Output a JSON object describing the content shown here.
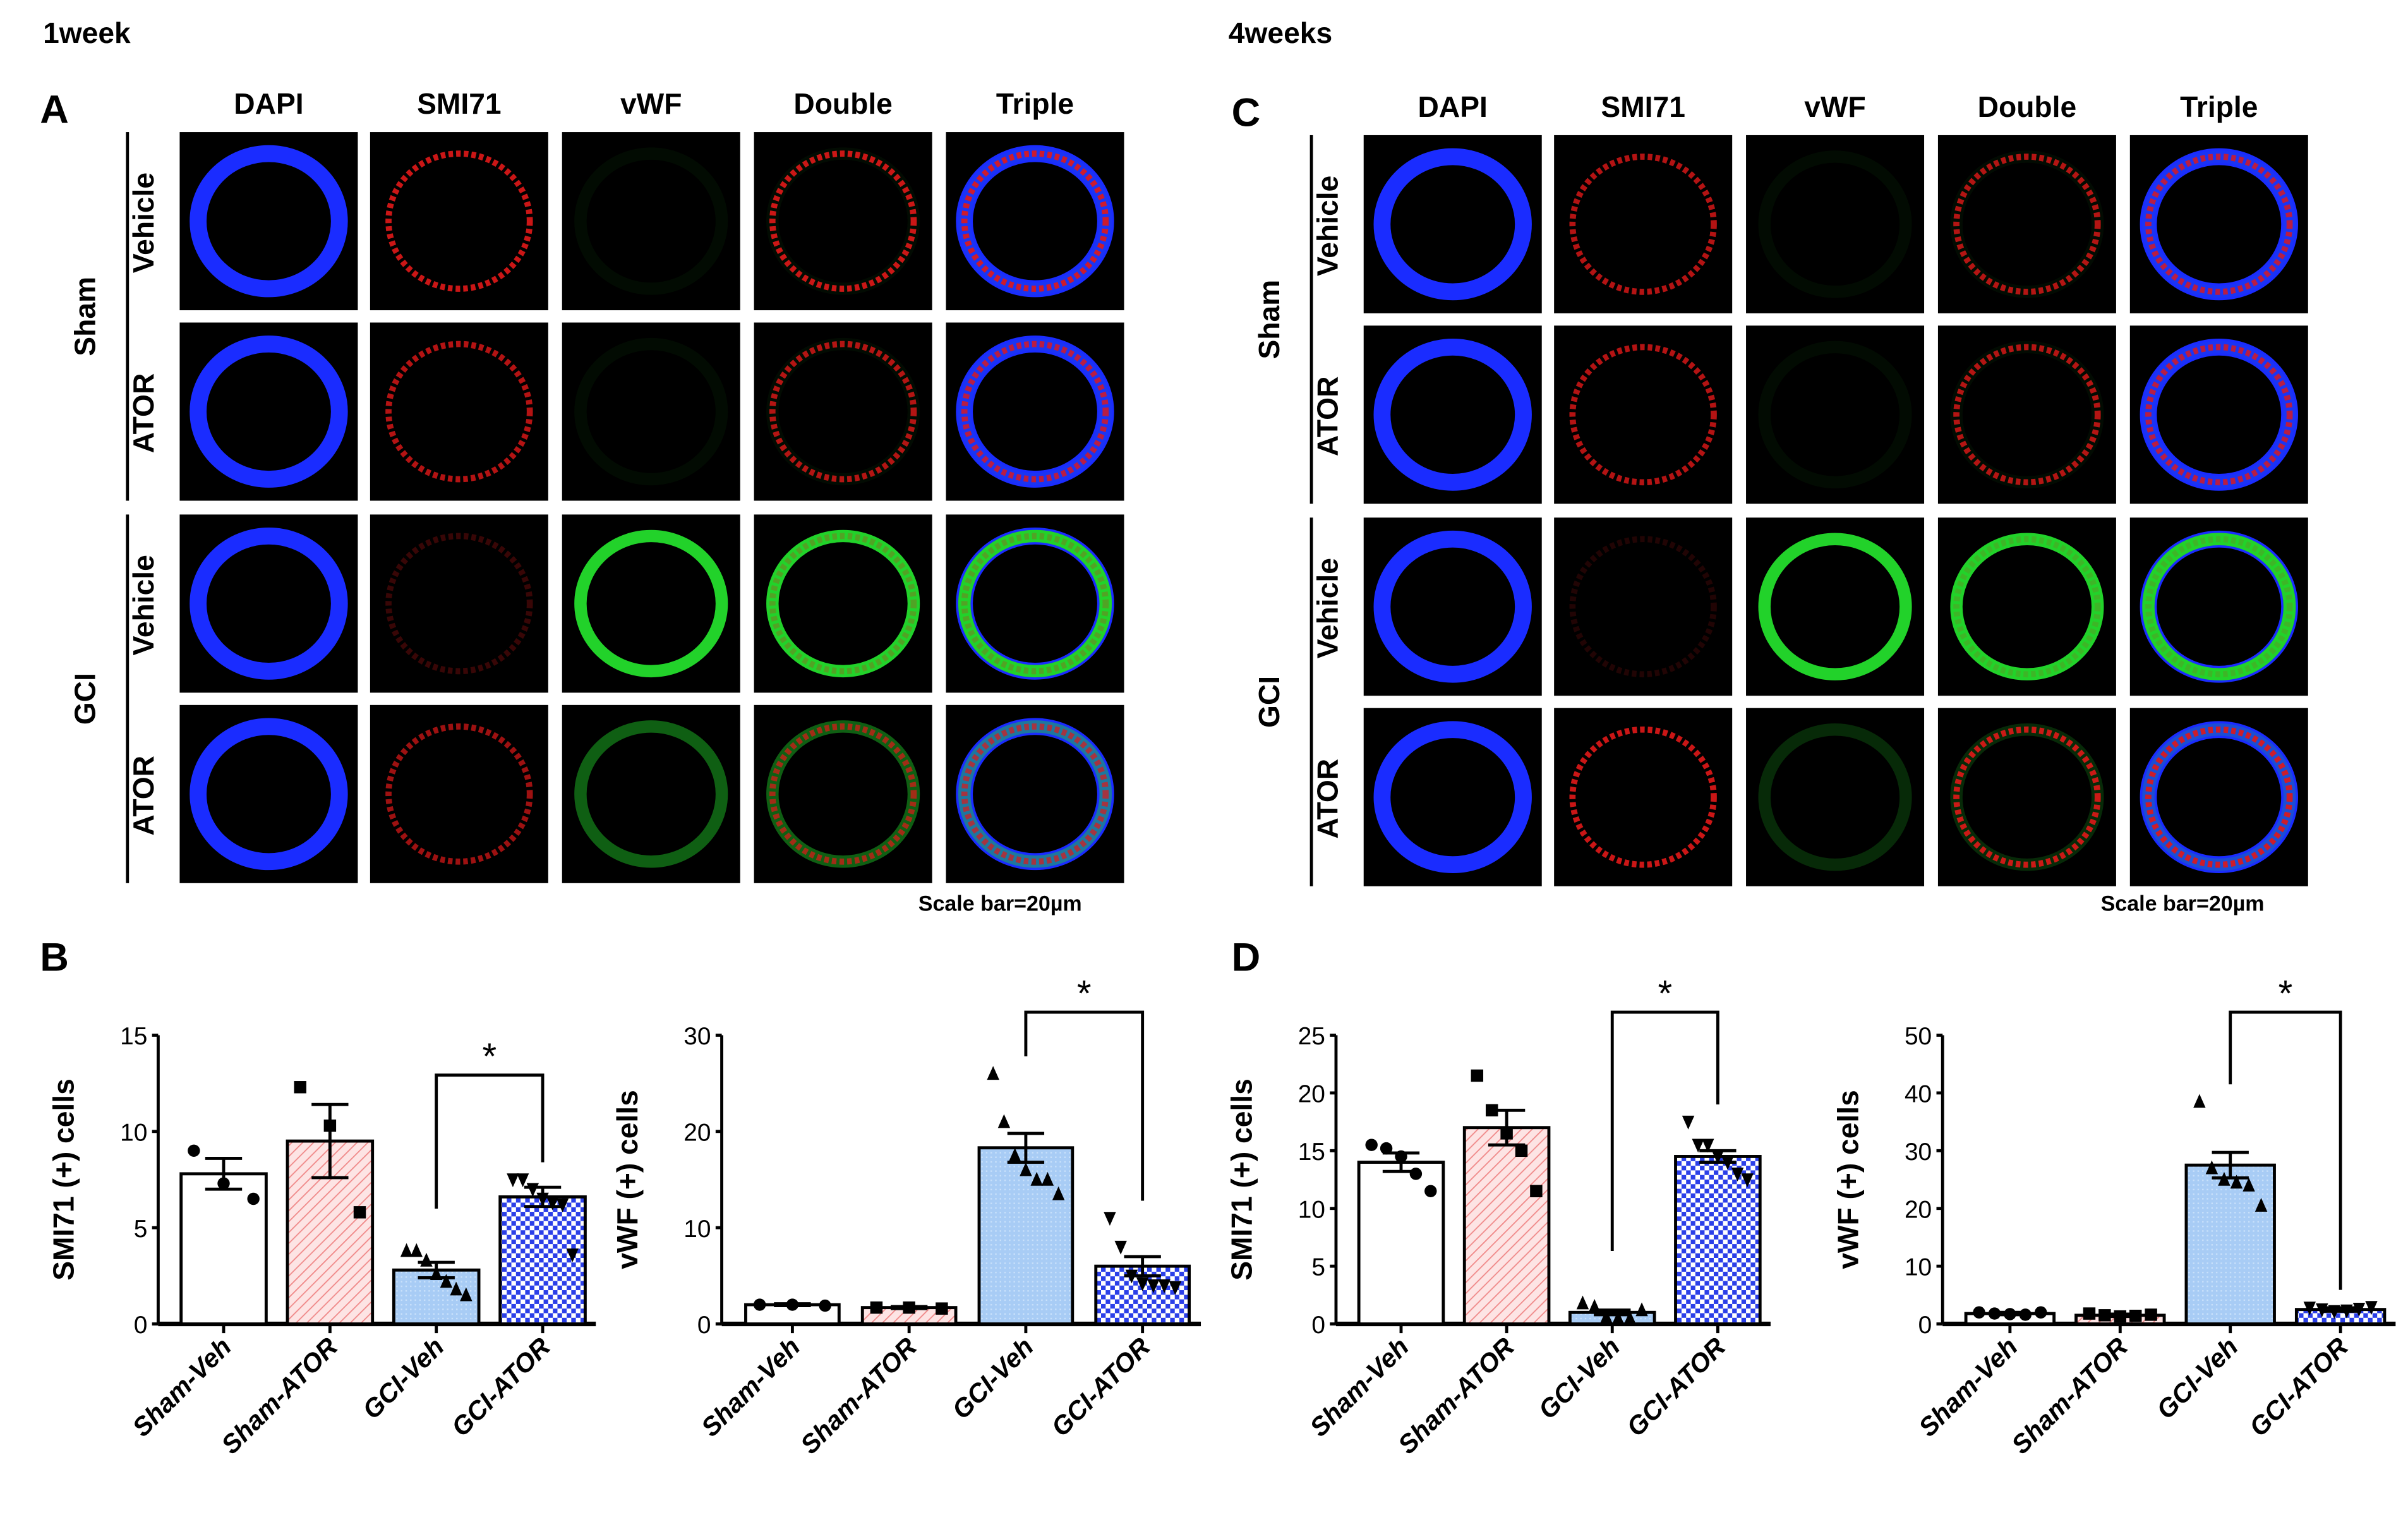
{
  "figure": {
    "week1_title": "1week",
    "week4_title": "4weeks",
    "panel_labels": {
      "A": "A",
      "B": "B",
      "C": "C",
      "D": "D"
    },
    "columns": [
      "DAPI",
      "SMI71",
      "vWF",
      "Double",
      "Triple"
    ],
    "group_labels": [
      "Sham",
      "GCI"
    ],
    "row_labels": [
      "Vehicle",
      "ATOR",
      "Vehicle",
      "ATOR"
    ],
    "scale_bar": "Scale bar=20µm",
    "channel_colors": {
      "DAPI": "#1a2cff",
      "SMI71": "#e01818",
      "vWF": "#22d22a"
    }
  },
  "chart_data": [
    {
      "type": "bar",
      "panel": "B",
      "ylabel": "SMI71 (+) cells",
      "ylim": [
        0,
        15
      ],
      "yticks": [
        0,
        5,
        10,
        15
      ],
      "categories": [
        "Sham-Veh",
        "Sham-ATOR",
        "GCI-Veh",
        "GCI-ATOR"
      ],
      "values": [
        7.8,
        9.5,
        2.8,
        6.6
      ],
      "sem": [
        0.8,
        1.9,
        0.4,
        0.5
      ],
      "points": [
        [
          9.0,
          7.3,
          6.5
        ],
        [
          12.3,
          10.3,
          5.8
        ],
        [
          3.8,
          3.8,
          3.3,
          2.6,
          2.2,
          1.8,
          1.5
        ],
        [
          7.5,
          7.5,
          7.0,
          6.5,
          6.3,
          6.2,
          3.6
        ]
      ],
      "significance": {
        "between": [
          "GCI-Veh",
          "GCI-ATOR"
        ],
        "label": "*"
      }
    },
    {
      "type": "bar",
      "panel": "B",
      "ylabel": "vWF (+) cells",
      "ylim": [
        0,
        30
      ],
      "yticks": [
        0,
        10,
        20,
        30
      ],
      "categories": [
        "Sham-Veh",
        "Sham-ATOR",
        "GCI-Veh",
        "GCI-ATOR"
      ],
      "values": [
        2.0,
        1.7,
        18.3,
        6.0
      ],
      "sem": [
        0.1,
        0.1,
        1.5,
        1.0
      ],
      "points": [
        [
          2.0,
          2.0,
          1.9
        ],
        [
          1.7,
          1.7,
          1.6
        ],
        [
          26.0,
          21.0,
          17.5,
          16.0,
          15.0,
          15.0,
          13.5
        ],
        [
          11.0,
          8.0,
          5.0,
          4.2,
          4.0,
          4.0,
          3.8
        ]
      ],
      "significance": {
        "between": [
          "GCI-Veh",
          "GCI-ATOR"
        ],
        "label": "*"
      }
    },
    {
      "type": "bar",
      "panel": "D",
      "ylabel": "SMI71 (+) cells",
      "ylim": [
        0,
        25
      ],
      "yticks": [
        0,
        5,
        10,
        15,
        20,
        25
      ],
      "categories": [
        "Sham-Veh",
        "Sham-ATOR",
        "GCI-Veh",
        "GCI-ATOR"
      ],
      "values": [
        14.0,
        17.0,
        1.0,
        14.5
      ],
      "sem": [
        0.8,
        1.5,
        0.2,
        0.5
      ],
      "points": [
        [
          15.5,
          15.2,
          14.5,
          13.0,
          11.5
        ],
        [
          21.5,
          18.5,
          16.5,
          15.0,
          11.5
        ],
        [
          1.8,
          1.5,
          0.6,
          0.5,
          0.5,
          1.2
        ],
        [
          17.5,
          15.5,
          15.5,
          14.5,
          14.0,
          13.0,
          12.5
        ]
      ],
      "significance": {
        "between": [
          "GCI-Veh",
          "GCI-ATOR"
        ],
        "label": "*"
      }
    },
    {
      "type": "bar",
      "panel": "D",
      "ylabel": "vWF (+) cells",
      "ylim": [
        0,
        50
      ],
      "yticks": [
        0,
        10,
        20,
        30,
        40,
        50
      ],
      "categories": [
        "Sham-Veh",
        "Sham-ATOR",
        "GCI-Veh",
        "GCI-ATOR"
      ],
      "values": [
        1.8,
        1.5,
        27.5,
        2.5
      ],
      "sem": [
        0.2,
        0.2,
        2.2,
        0.3
      ],
      "points": [
        [
          2.0,
          1.8,
          1.7,
          1.6,
          2.0
        ],
        [
          1.8,
          1.5,
          1.3,
          1.4,
          1.6
        ],
        [
          38.5,
          27.0,
          25.0,
          24.5,
          24.0,
          20.5
        ],
        [
          2.8,
          2.5,
          2.2,
          2.3,
          2.6,
          2.9
        ]
      ],
      "significance": {
        "between": [
          "GCI-Veh",
          "GCI-ATOR"
        ],
        "label": "*"
      }
    }
  ]
}
